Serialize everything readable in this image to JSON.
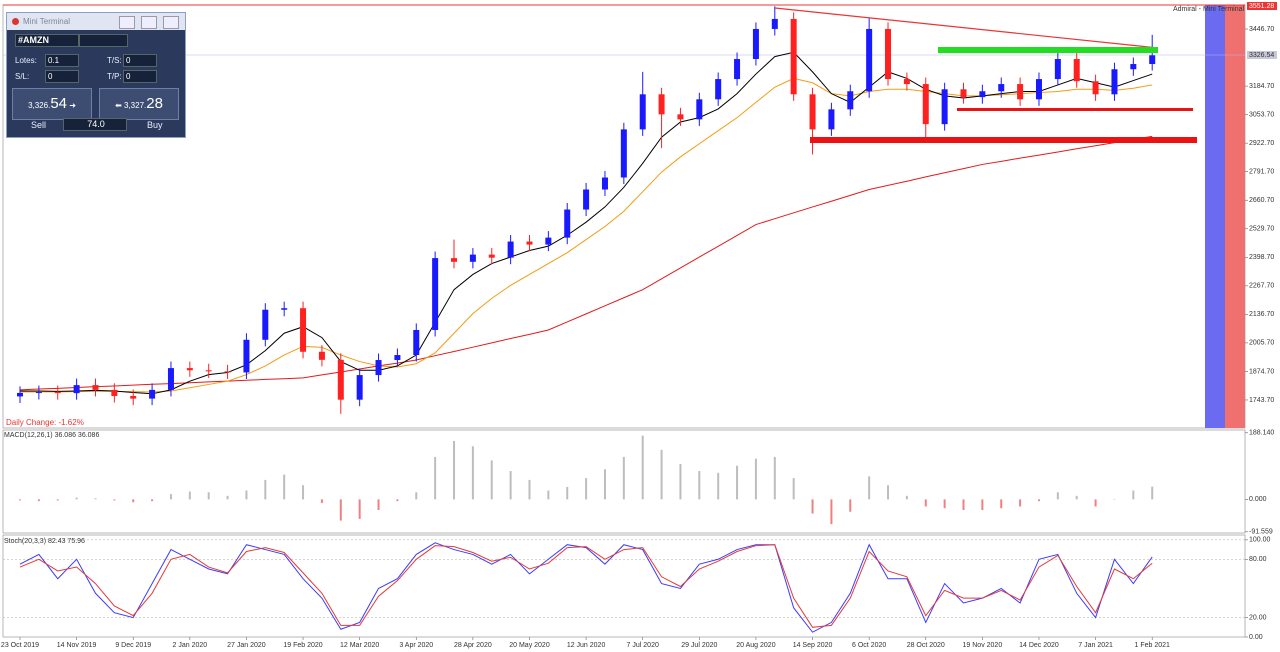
{
  "terminal": {
    "title": "Mini Terminal",
    "symbol": "#AMZN",
    "lots_label": "Lotes:",
    "lots": "0.1",
    "ts_label": "T/S:",
    "ts": "0",
    "sl_label": "S/L:",
    "sl": "0",
    "tp_label": "T/P:",
    "tp": "0",
    "sell_price_main": "3,326.",
    "sell_price_big": "54",
    "buy_price_main": "3,327.",
    "buy_price_big": "28",
    "sell": "Sell",
    "spread": "74.0",
    "buy": "Buy",
    "broker": "Admiral - Mini Terminal"
  },
  "chart_data": [
    {
      "type": "candlestick",
      "daily_change": "Daily Change: -1.62%",
      "last_price_label": "3326.54",
      "high_label": "3551.28",
      "up_color": "#1a1aff",
      "down_color": "#ff2020",
      "categories": [
        "23 Oct 2019",
        null,
        null,
        "14 Nov 2019",
        null,
        null,
        "9 Dec 2019",
        null,
        null,
        "2 Jan 2020",
        null,
        null,
        "27 Jan 2020",
        null,
        null,
        "19 Feb 2020",
        null,
        null,
        "12 Mar 2020",
        null,
        null,
        "3 Apr 2020",
        null,
        null,
        "28 Apr 2020",
        null,
        null,
        "20 May 2020",
        null,
        null,
        "12 Jun 2020",
        null,
        null,
        "7 Jul 2020",
        null,
        null,
        "29 Jul 2020",
        null,
        null,
        "20 Aug 2020",
        null,
        null,
        "14 Sep 2020",
        null,
        null,
        "6 Oct 2020",
        null,
        null,
        "28 Oct 2020",
        null,
        null,
        "19 Nov 2020",
        null,
        null,
        "14 Dec 2020",
        null,
        null,
        "7 Jan 2021",
        null,
        null,
        "1 Feb 2021"
      ],
      "open": [
        1760,
        1776,
        1780,
        1775,
        1812,
        1790,
        1762,
        1750,
        1790,
        1890,
        1880,
        1875,
        1870,
        2020,
        2158,
        2165,
        1965,
        1928,
        1745,
        1858,
        1927,
        1950,
        2065,
        2395,
        2378,
        2411,
        2397,
        2471,
        2457,
        2489,
        2618,
        2710,
        2765,
        2986,
        3147,
        3055,
        3032,
        3124,
        3217,
        3309,
        3447,
        3493,
        3147,
        2986,
        3078,
        3161,
        3447,
        3217,
        3194,
        3010,
        3170,
        3134,
        3161,
        3194,
        3124,
        3217,
        3309,
        3207,
        3147,
        3262,
        3286
      ],
      "high": [
        1806,
        1810,
        1810,
        1842,
        1842,
        1820,
        1792,
        1820,
        1920,
        1920,
        1910,
        1905,
        2050,
        2188,
        2195,
        2195,
        1995,
        1958,
        1888,
        1957,
        1980,
        2095,
        2425,
        2480,
        2441,
        2441,
        2501,
        2501,
        2519,
        2648,
        2740,
        2795,
        3016,
        3250,
        3177,
        3085,
        3154,
        3247,
        3339,
        3477,
        3551,
        3523,
        3177,
        3108,
        3191,
        3496,
        3477,
        3247,
        3224,
        3200,
        3200,
        3191,
        3224,
        3224,
        3247,
        3339,
        3339,
        3237,
        3292,
        3316,
        3420
      ],
      "low": [
        1730,
        1746,
        1745,
        1745,
        1760,
        1732,
        1720,
        1720,
        1760,
        1850,
        1845,
        1840,
        1840,
        1990,
        2128,
        1935,
        1898,
        1680,
        1715,
        1828,
        1897,
        1920,
        2035,
        2348,
        2348,
        2367,
        2367,
        2427,
        2427,
        2459,
        2588,
        2680,
        2735,
        2956,
        2900,
        3002,
        3002,
        3094,
        3187,
        3279,
        3417,
        3117,
        2871,
        2956,
        3048,
        3131,
        3187,
        3164,
        2950,
        2980,
        3104,
        3104,
        3131,
        3094,
        3094,
        3187,
        3177,
        3117,
        3117,
        3232,
        3256
      ],
      "close": [
        1776,
        1780,
        1775,
        1812,
        1790,
        1762,
        1750,
        1790,
        1890,
        1880,
        1875,
        1870,
        2020,
        2158,
        2165,
        1965,
        1928,
        1745,
        1858,
        1927,
        1950,
        2065,
        2395,
        2378,
        2411,
        2397,
        2471,
        2457,
        2489,
        2618,
        2710,
        2765,
        2986,
        3147,
        3055,
        3032,
        3124,
        3217,
        3309,
        3447,
        3493,
        3147,
        2986,
        3078,
        3161,
        3447,
        3217,
        3194,
        3010,
        3170,
        3134,
        3161,
        3194,
        3124,
        3217,
        3309,
        3207,
        3147,
        3262,
        3286,
        3326
      ],
      "series": [
        {
          "color": "#e31a1a",
          "values": [
            1790,
            1794,
            1797,
            1801,
            1805,
            1808,
            1812,
            1816,
            1819,
            1823,
            1827,
            1830,
            1834,
            1838,
            1841,
            1845,
            1859,
            1872,
            1886,
            1900,
            1913,
            1927,
            1947,
            1966,
            1986,
            2006,
            2026,
            2045,
            2065,
            2102,
            2139,
            2176,
            2213,
            2250,
            2300,
            2350,
            2400,
            2449,
            2499,
            2549,
            2576,
            2603,
            2630,
            2656,
            2683,
            2710,
            2729,
            2748,
            2768,
            2787,
            2806,
            2825,
            2839,
            2854,
            2868,
            2882,
            2897,
            2911,
            2925,
            2940,
            2954
          ]
        },
        {
          "color": "#f39c12",
          "values": [
            1780,
            1781,
            1781,
            1782,
            1783,
            1783,
            1782,
            1780,
            1785,
            1800,
            1815,
            1830,
            1860,
            1900,
            1950,
            1990,
            1985,
            1950,
            1920,
            1900,
            1895,
            1910,
            1960,
            2050,
            2140,
            2210,
            2270,
            2320,
            2370,
            2420,
            2480,
            2540,
            2610,
            2700,
            2790,
            2860,
            2920,
            2980,
            3040,
            3110,
            3180,
            3220,
            3200,
            3150,
            3140,
            3160,
            3170,
            3170,
            3160,
            3150,
            3140,
            3140,
            3145,
            3150,
            3155,
            3160,
            3170,
            3170,
            3165,
            3175,
            3190
          ]
        },
        {
          "color": "#000000",
          "values": [
            1785,
            1785,
            1783,
            1785,
            1788,
            1785,
            1778,
            1772,
            1790,
            1830,
            1860,
            1870,
            1905,
            1970,
            2050,
            2080,
            2030,
            1920,
            1880,
            1880,
            1900,
            1950,
            2100,
            2250,
            2320,
            2370,
            2400,
            2430,
            2450,
            2500,
            2560,
            2630,
            2720,
            2830,
            2950,
            3020,
            3040,
            3080,
            3150,
            3240,
            3320,
            3340,
            3250,
            3150,
            3110,
            3180,
            3250,
            3220,
            3170,
            3140,
            3130,
            3140,
            3150,
            3160,
            3160,
            3190,
            3220,
            3200,
            3180,
            3210,
            3240
          ]
        }
      ],
      "ylim": [
        1615,
        3557
      ],
      "yticks": [
        {
          "value": 3446.7,
          "label": "3446.70"
        },
        {
          "value": 3184.7,
          "label": "3184.70"
        },
        {
          "value": 3053.7,
          "label": "3053.70"
        },
        {
          "value": 2922.7,
          "label": "2922.70"
        },
        {
          "value": 2791.7,
          "label": "2791.70"
        },
        {
          "value": 2660.7,
          "label": "2660.70"
        },
        {
          "value": 2529.7,
          "label": "2529.70"
        },
        {
          "value": 2398.7,
          "label": "2398.70"
        },
        {
          "value": 2267.7,
          "label": "2267.70"
        },
        {
          "value": 2136.7,
          "label": "2136.70"
        },
        {
          "value": 2005.7,
          "label": "2005.70"
        },
        {
          "value": 1874.7,
          "label": "1874.70"
        },
        {
          "value": 1743.7,
          "label": "1743.70"
        }
      ]
    },
    {
      "type": "bar",
      "title": "MACD(12,26,1) 36.086 36.086",
      "color": "#bdbdbd",
      "negative_color": "#f08080",
      "values": [
        -3,
        -5,
        -3,
        5,
        3,
        -3,
        -8,
        -5,
        15,
        22,
        20,
        10,
        25,
        55,
        70,
        40,
        -10,
        -60,
        -55,
        -30,
        -5,
        20,
        120,
        165,
        150,
        110,
        80,
        55,
        25,
        35,
        60,
        85,
        120,
        180,
        140,
        100,
        80,
        75,
        95,
        115,
        120,
        60,
        -40,
        -70,
        -35,
        65,
        40,
        10,
        -20,
        -25,
        -30,
        -30,
        -25,
        -20,
        -5,
        20,
        10,
        -20,
        0,
        25,
        36
      ],
      "ylim": [
        -95,
        196
      ],
      "yticks": [
        {
          "value": 188.14,
          "label": "188.140"
        },
        {
          "value": 0,
          "label": "0.000"
        },
        {
          "value": -91.559,
          "label": "-91.559"
        }
      ]
    },
    {
      "type": "line",
      "title": "Stoch(20,3,3) 82.43 75.96",
      "series": [
        {
          "color": "#3b3bff",
          "values": [
            75,
            85,
            60,
            80,
            45,
            25,
            20,
            55,
            90,
            80,
            70,
            65,
            95,
            90,
            85,
            60,
            40,
            8,
            15,
            50,
            60,
            85,
            97,
            90,
            85,
            75,
            85,
            65,
            80,
            95,
            92,
            75,
            95,
            90,
            55,
            50,
            75,
            80,
            90,
            95,
            95,
            30,
            5,
            15,
            45,
            95,
            60,
            60,
            15,
            55,
            35,
            40,
            50,
            35,
            80,
            85,
            45,
            20,
            80,
            55,
            82.43
          ]
        },
        {
          "color": "#e33b3b",
          "values": [
            72,
            80,
            68,
            72,
            55,
            32,
            22,
            45,
            80,
            85,
            72,
            66,
            88,
            92,
            87,
            66,
            45,
            12,
            12,
            42,
            58,
            80,
            94,
            93,
            87,
            78,
            82,
            70,
            76,
            92,
            93,
            80,
            90,
            92,
            62,
            52,
            70,
            78,
            88,
            94,
            95,
            40,
            10,
            12,
            40,
            88,
            68,
            62,
            22,
            48,
            40,
            40,
            48,
            38,
            72,
            84,
            52,
            25,
            70,
            60,
            75.96
          ]
        }
      ],
      "ylim": [
        0,
        105
      ],
      "yticks": [
        {
          "value": 100,
          "label": "100.00"
        },
        {
          "value": 80,
          "label": "80.00"
        },
        {
          "value": 20,
          "label": "20.00"
        },
        {
          "value": 0,
          "label": "0.00"
        }
      ]
    }
  ]
}
